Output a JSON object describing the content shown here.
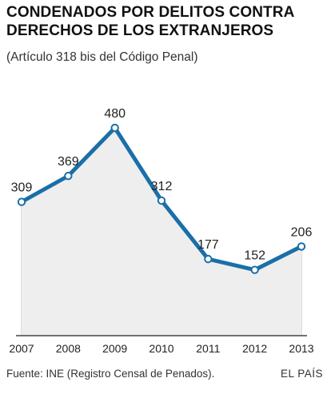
{
  "title": "CONDENADOS POR DELITOS CONTRA DERECHOS DE LOS EXTRANJEROS",
  "subtitle": "(Artículo 318 bis del Código Penal)",
  "footer": {
    "source": "Fuente: INE (Registro Censal de Penados).",
    "credit": "EL PAÍS"
  },
  "colors": {
    "line": "#1a6fa8",
    "area": "#eeeeee",
    "gridline": "#bbbbbb"
  },
  "chart_data": {
    "type": "line",
    "x": [
      "2007",
      "2008",
      "2009",
      "2010",
      "2011",
      "2012",
      "2013"
    ],
    "series": [
      {
        "values": [
          309,
          369,
          480,
          312,
          177,
          152,
          206
        ]
      }
    ],
    "data_labels": [
      "309",
      "369",
      "480",
      "312",
      "177",
      "152",
      "206"
    ],
    "ylim": [
      0,
      480
    ],
    "grid": "vertical-lines",
    "filled_area": true
  }
}
